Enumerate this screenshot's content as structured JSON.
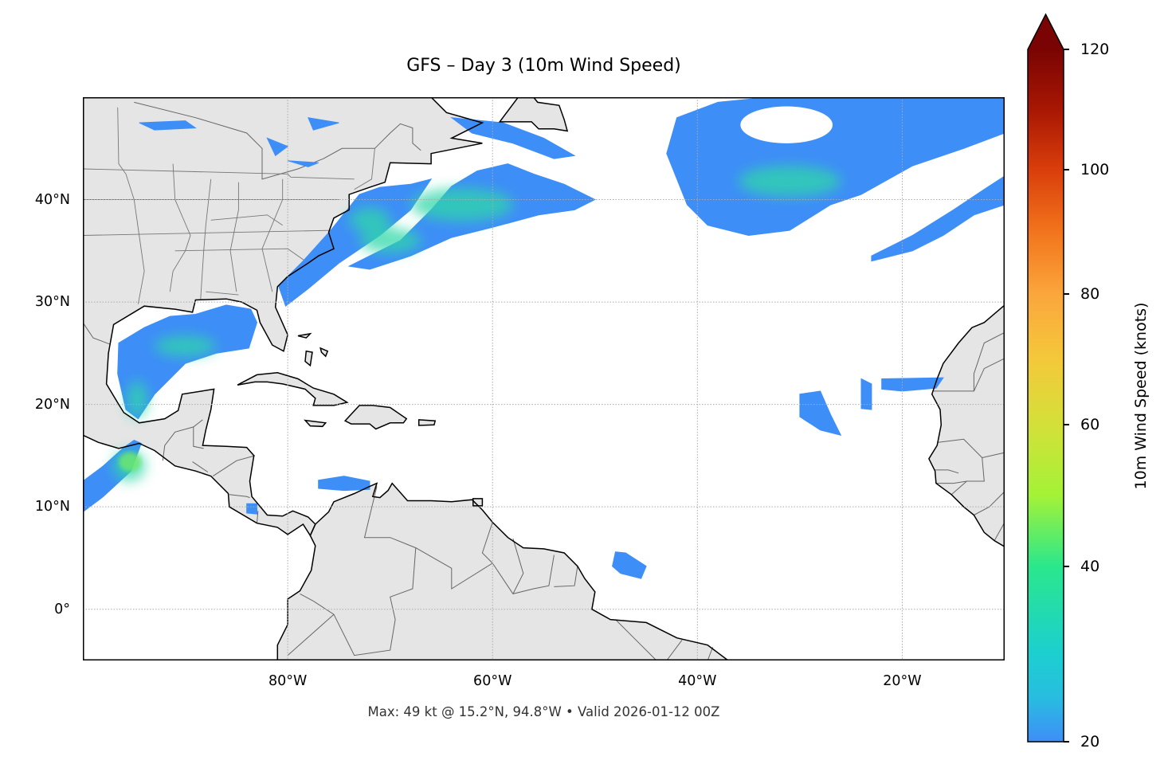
{
  "title": "GFS – Day 3 (10m Wind Speed)",
  "footer": "Max: 49 kt @ 15.2°N, 94.8°W • Valid 2026-01-12 00Z",
  "map": {
    "extent_lon": [
      -100,
      -10
    ],
    "extent_lat": [
      -5,
      50
    ],
    "land_color": "#e5e5e5",
    "ocean_color": "#ffffff",
    "gridlines": "dotted",
    "x_ticks": [
      {
        "value": -80,
        "label": "80°W"
      },
      {
        "value": -60,
        "label": "60°W"
      },
      {
        "value": -40,
        "label": "40°W"
      },
      {
        "value": -20,
        "label": "20°W"
      }
    ],
    "y_ticks": [
      {
        "value": 40,
        "label": "40°N"
      },
      {
        "value": 30,
        "label": "30°N"
      },
      {
        "value": 20,
        "label": "20°N"
      },
      {
        "value": 10,
        "label": "10°N"
      },
      {
        "value": 0,
        "label": "0°"
      }
    ]
  },
  "colorbar": {
    "label": "10m Wind Speed (knots)",
    "range": [
      20,
      120
    ],
    "extend": "max",
    "ticks": [
      {
        "value": 20,
        "label": "20"
      },
      {
        "value": 40,
        "label": "40"
      },
      {
        "value": 60,
        "label": "60"
      },
      {
        "value": 80,
        "label": "80"
      },
      {
        "value": 100,
        "label": "100"
      },
      {
        "value": 120,
        "label": "120"
      }
    ],
    "colors": {
      "20": "#3e8ef7",
      "40": "#2ae78c",
      "60": "#d4e03a",
      "80": "#fba63c",
      "100": "#d93e0b",
      "120": "#7a0403"
    }
  }
}
